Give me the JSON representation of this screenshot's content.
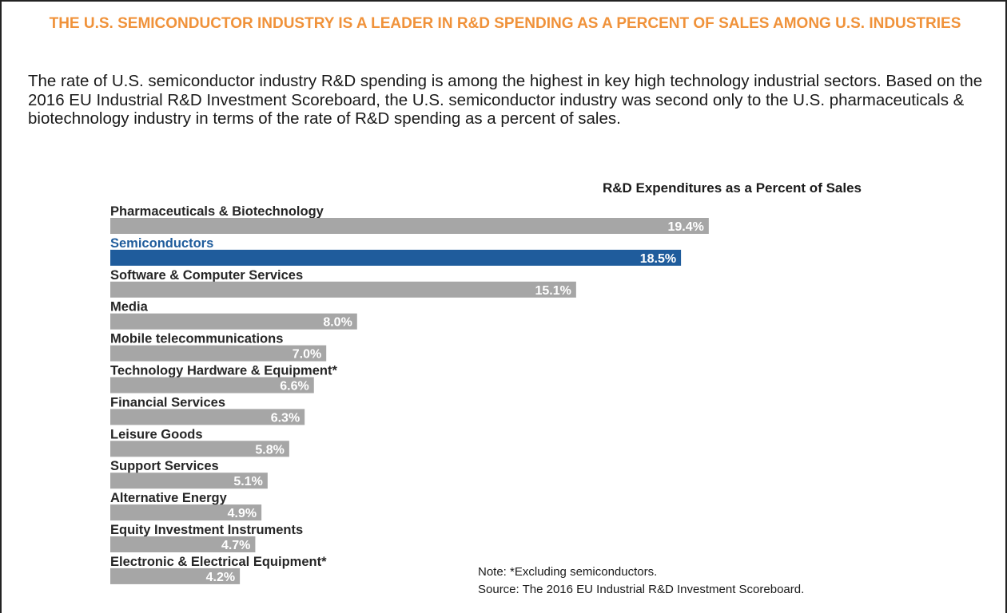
{
  "heading": "THE U.S. SEMICONDUCTOR INDUSTRY IS A LEADER IN R&D SPENDING AS A PERCENT OF SALES AMONG U.S. INDUSTRIES",
  "paragraph": "The rate of U.S. semiconductor industry R&D spending is among the highest in key high technology industrial sectors. Based on the 2016 EU Industrial R&D Investment Scoreboard, the U.S. semiconductor industry was second only to the U.S. pharmaceuticals & biotechnology industry in terms of the rate of R&D spending as a percent of sales.",
  "chart_data": {
    "type": "bar",
    "title": "R&D Expenditures as a Percent of Sales",
    "categories": [
      "Pharmaceuticals & Biotechnology",
      "Semiconductors",
      "Software & Computer Services",
      "Media",
      "Mobile telecommunications",
      "Technology Hardware & Equipment*",
      "Financial Services",
      "Leisure Goods",
      "Support Services",
      "Alternative Energy",
      "Equity Investment Instruments",
      "Electronic & Electrical Equipment*"
    ],
    "values": [
      19.4,
      18.5,
      15.1,
      8.0,
      7.0,
      6.6,
      6.3,
      5.8,
      5.1,
      4.9,
      4.7,
      4.2
    ],
    "value_labels": [
      "19.4%",
      "18.5%",
      "15.1%",
      "8.0%",
      "7.0%",
      "6.6%",
      "6.3%",
      "5.8%",
      "5.1%",
      "4.9%",
      "4.7%",
      "4.2%"
    ],
    "colors": [
      "#a6a6a6",
      "#1f5c9c",
      "#a6a6a6",
      "#a6a6a6",
      "#a6a6a6",
      "#a6a6a6",
      "#a6a6a6",
      "#a6a6a6",
      "#a6a6a6",
      "#a6a6a6",
      "#a6a6a6",
      "#a6a6a6"
    ],
    "label_colors": [
      "#262626",
      "#1f5c9c",
      "#262626",
      "#262626",
      "#262626",
      "#262626",
      "#262626",
      "#262626",
      "#262626",
      "#262626",
      "#262626",
      "#262626"
    ],
    "note": "Note: *Excluding semiconductors.",
    "source": "Source: The 2016 EU Industrial R&D Investment Scoreboard."
  }
}
